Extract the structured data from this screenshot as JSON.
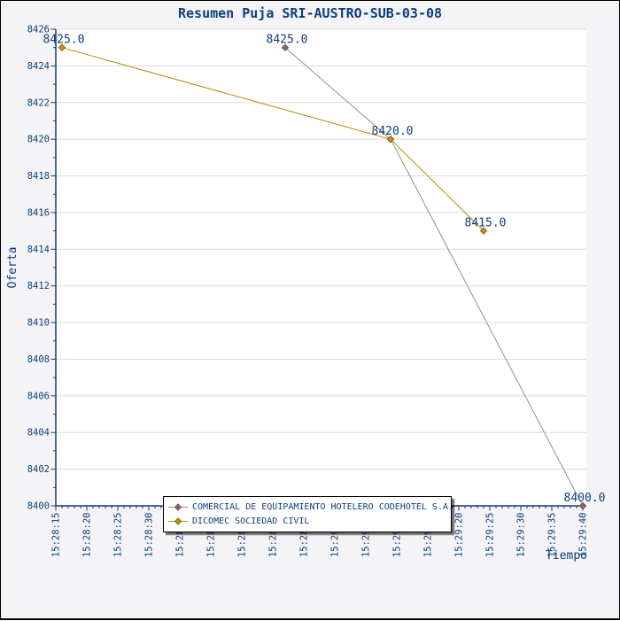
{
  "chart_data": {
    "type": "line",
    "title": "Resumen Puja SRI-AUSTRO-SUB-03-08",
    "xlabel": "Tiempo",
    "ylabel": "Oferta",
    "ylim": [
      8400,
      8426
    ],
    "y_tick_step": 2,
    "y_minor_step": 1,
    "x_start": "15:28:15",
    "x_end": "15:29:40",
    "x_major_step_seconds": 5,
    "x_minor_step_seconds": 1,
    "x_tick_labels": [
      "15:28:15",
      "15:28:20",
      "15:28:25",
      "15:28:30",
      "15:28:35",
      "15:28:40",
      "15:28:45",
      "15:28:50",
      "15:28:55",
      "15:29:00",
      "15:29:05",
      "15:29:10",
      "15:29:15",
      "15:29:20",
      "15:29:25",
      "15:29:30",
      "15:29:35",
      "15:29:40"
    ],
    "grid": "horizontal",
    "legend_position": "bottom-inside-overlay",
    "series": [
      {
        "name": "COMERCIAL DE EQUIPAMIENTO HOTELERO CODEHOTEL S.A.",
        "color": "#a08a80",
        "marker": "diamond",
        "marker_fill": "#8a6b5f",
        "marker_stroke": "#6f5349",
        "points": [
          {
            "time": "15:28:52",
            "value": 8425,
            "label": "8425.0"
          },
          {
            "time": "15:29:09",
            "value": 8420,
            "label": "8420.0"
          },
          {
            "time": "15:29:40",
            "value": 8400,
            "label": "8400.0"
          }
        ]
      },
      {
        "name": "DICOMEC SOCIEDAD CIVIL",
        "color": "#b8860b",
        "marker": "diamond",
        "marker_fill": "#c49110",
        "marker_stroke": "#8a6508",
        "points": [
          {
            "time": "15:28:16",
            "value": 8425,
            "label": "8425.0"
          },
          {
            "time": "15:29:09",
            "value": 8420,
            "label": "8420.0"
          },
          {
            "time": "15:29:24",
            "value": 8415,
            "label": "8415.0"
          }
        ]
      }
    ]
  },
  "colors": {
    "text": "#0d3d7d",
    "axis": "#0d3d7d",
    "grid": "#dcdcdc",
    "background": "#f4f4f6",
    "plot_background": "#ffffff"
  }
}
